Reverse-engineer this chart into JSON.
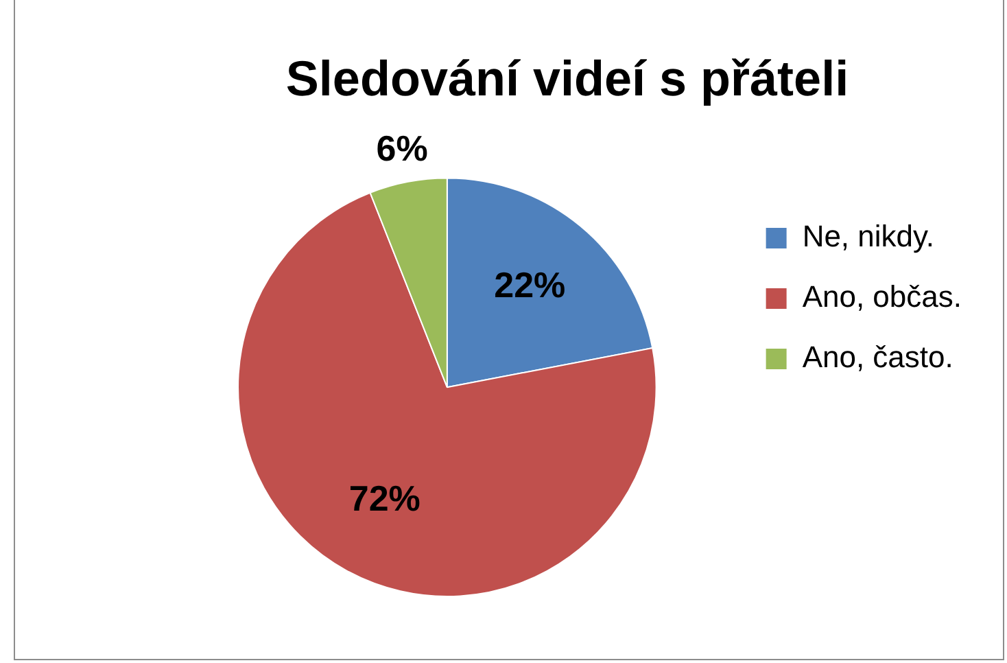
{
  "chart_data": {
    "type": "pie",
    "title": "Sledování videí s přáteli",
    "categories": [
      "Ne, nikdy.",
      "Ano, občas.",
      "Ano, často."
    ],
    "values": [
      22,
      72,
      6
    ],
    "colors": [
      "#4f81bd",
      "#c0504d",
      "#9bbb59"
    ],
    "value_labels": [
      "22%",
      "72%",
      "6%"
    ],
    "legend": "right"
  }
}
